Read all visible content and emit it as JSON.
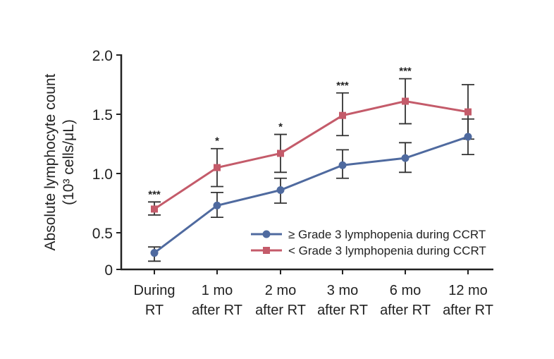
{
  "chart_data": {
    "type": "line",
    "title": "",
    "xlabel": "",
    "ylabel": "Absolute lymphocyte count",
    "ylabel_line2": "(10³ cells/μL)",
    "categories": [
      [
        "During",
        "RT"
      ],
      [
        "1 mo",
        "after RT"
      ],
      [
        "2 mo",
        "after RT"
      ],
      [
        "3 mo",
        "after RT"
      ],
      [
        "6 mo",
        "after RT"
      ],
      [
        "12 mo",
        "after RT"
      ]
    ],
    "yticks": [
      {
        "value": 0,
        "label": "0"
      },
      {
        "value": 0.5,
        "label": "0.5"
      },
      {
        "value": 1.0,
        "label": "1.0"
      },
      {
        "value": 1.5,
        "label": "1.5"
      },
      {
        "value": 2.0,
        "label": "2.0"
      }
    ],
    "ylim": [
      0,
      2.0
    ],
    "grid": false,
    "legend_position": "lower-right",
    "series": [
      {
        "name": "≥ Grade 3 lymphopenia during CCRT",
        "color": "#4f6a9f",
        "marker": "circle",
        "values": [
          0.33,
          0.73,
          0.86,
          1.07,
          1.13,
          1.31
        ],
        "err_low": [
          0.26,
          0.63,
          0.75,
          0.96,
          1.01,
          1.16
        ],
        "err_high": [
          0.38,
          0.84,
          0.96,
          1.2,
          1.26,
          1.46
        ]
      },
      {
        "name": "< Grade 3 lymphopenia during CCRT",
        "color": "#c45b6a",
        "marker": "square",
        "values": [
          0.7,
          1.05,
          1.17,
          1.49,
          1.61,
          1.52
        ],
        "err_low": [
          0.65,
          0.89,
          1.01,
          1.32,
          1.42,
          1.29
        ],
        "err_high": [
          0.76,
          1.21,
          1.33,
          1.68,
          1.8,
          1.75
        ]
      }
    ],
    "annotations": [
      "***",
      "*",
      "*",
      "***",
      "***",
      ""
    ]
  }
}
